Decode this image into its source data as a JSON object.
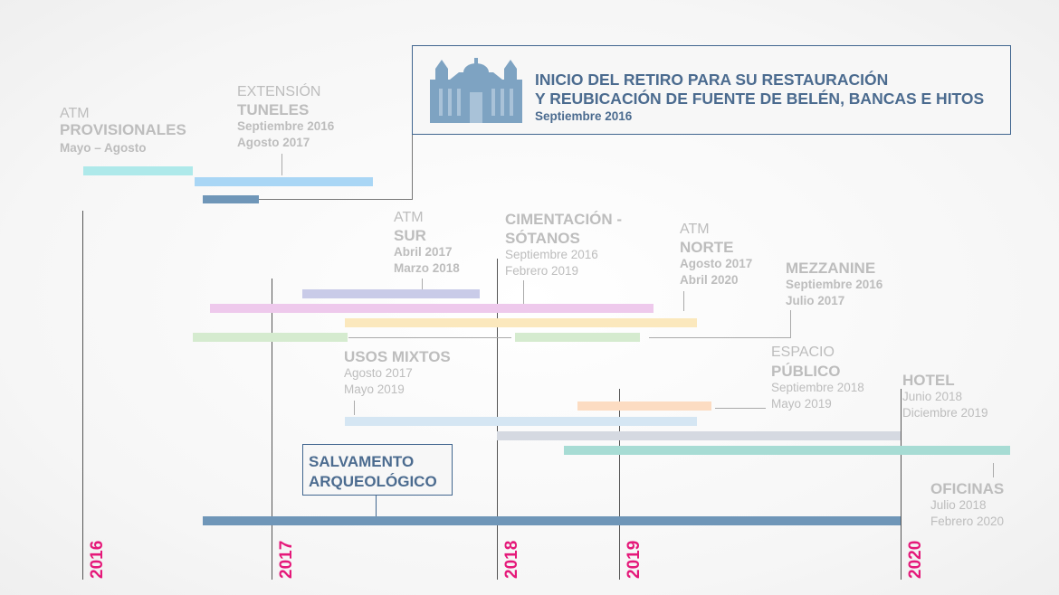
{
  "years": [
    "2016",
    "2017",
    "2018",
    "2019",
    "2020"
  ],
  "callout": {
    "line1": "INICIO DEL RETIRO PARA SU RESTAURACIÓN",
    "line2": "Y REUBICACIÓN DE FUENTE DE BELÉN, BANCAS E HITOS",
    "date": "Septiembre 2016",
    "icon": "cathedral-icon"
  },
  "salvamento": {
    "line1": "SALVAMENTO",
    "line2": "ARQUEOLÓGICO"
  },
  "labels": {
    "atm_prov": {
      "pre": "ATM",
      "name": "PROVISIONALES",
      "dates": "Mayo – Agosto"
    },
    "tuneles": {
      "pre": "EXTENSIÓN",
      "name": "TUNELES",
      "d1": "Septiembre 2016",
      "d2": "Agosto  2017"
    },
    "atm_sur": {
      "pre": "ATM",
      "name": "SUR",
      "d1": "Abril 2017",
      "d2": "Marzo 2018"
    },
    "cimentacion": {
      "name1": "CIMENTACIÓN -",
      "name2": "SÓTANOS",
      "d1": "Septiembre 2016",
      "d2": "Febrero 2019"
    },
    "atm_norte": {
      "pre": "ATM",
      "name": "NORTE",
      "d1": "Agosto  2017",
      "d2": "Abril 2020"
    },
    "mezzanine": {
      "name": "MEZZANINE",
      "d1": "Septiembre 2016",
      "d2": "Julio 2017"
    },
    "usos_mixtos": {
      "name": "USOS MIXTOS",
      "d1": "Agosto 2017",
      "d2": "Mayo 2019"
    },
    "espacio": {
      "pre": "ESPACIO",
      "name": "PÚBLICO",
      "d1": "Septiembre 2018",
      "d2": "Mayo 2019"
    },
    "hotel": {
      "name": "HOTEL",
      "d1": "Junio 2018",
      "d2": "Diciembre 2019"
    },
    "oficinas": {
      "name": "OFICINAS",
      "d1": "Julio 2018",
      "d2": "Febrero 2020"
    }
  },
  "colors": {
    "year": "#e5197a",
    "callout": "#4b6b8f",
    "atm_prov": "#aee9ea",
    "tuneles": "#a9d6f5",
    "retiro": "#6f96b8",
    "atm_sur": "#c9cbe8",
    "cimentacion": "#eec9ec",
    "atm_norte": "#fbe8bd",
    "mezzanine": "#d5ebcf",
    "usos_mixtos": "#d5e6f3",
    "espacio": "#fcdcc2",
    "hotel": "#d5d9e1",
    "oficinas": "#a7dcd4",
    "salvamento": "#6f96b8"
  }
}
